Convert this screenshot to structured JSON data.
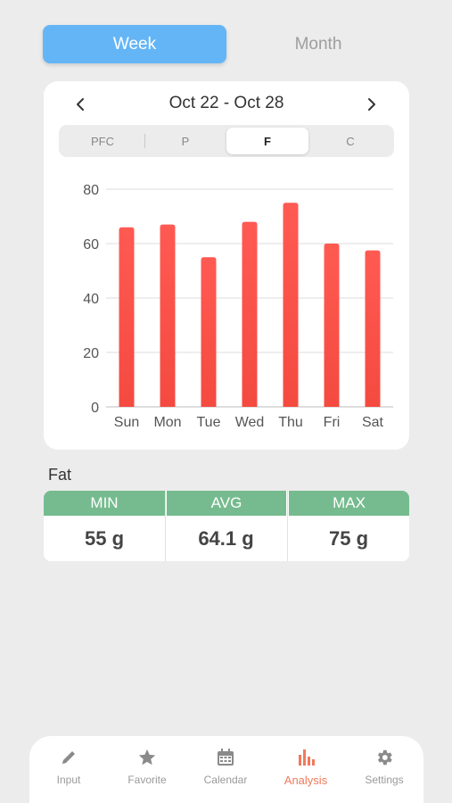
{
  "period_toggle": {
    "week_label": "Week",
    "month_label": "Month",
    "selected": "Week"
  },
  "date_nav": {
    "prev_icon": "chevron-left-icon",
    "next_icon": "chevron-right-icon",
    "range_label": "Oct 22 - Oct 28"
  },
  "nutrient_tabs": [
    {
      "label": "PFC",
      "active": false
    },
    {
      "label": "P",
      "active": false
    },
    {
      "label": "F",
      "active": true
    },
    {
      "label": "C",
      "active": false
    }
  ],
  "chart_data": {
    "type": "bar",
    "categories": [
      "Sun",
      "Mon",
      "Tue",
      "Wed",
      "Thu",
      "Fri",
      "Sat"
    ],
    "values": [
      66,
      67,
      55,
      68,
      75,
      60,
      57.5
    ],
    "yticks": [
      0,
      20,
      40,
      60,
      80
    ],
    "ylim": [
      0,
      80
    ],
    "grid": true,
    "bar_color": "#f44a40"
  },
  "summary": {
    "title": "Fat",
    "columns": [
      {
        "label": "MIN",
        "value": "55 g"
      },
      {
        "label": "AVG",
        "value": "64.1 g"
      },
      {
        "label": "MAX",
        "value": "75 g"
      }
    ]
  },
  "colors": {
    "accent": "#64b5f6",
    "stat_header": "#76bb8f",
    "active_nav": "#f07a5c",
    "inactive_nav": "#9a9a9a"
  },
  "bottom_nav": [
    {
      "label": "Input",
      "icon": "pencil-icon",
      "active": false
    },
    {
      "label": "Favorite",
      "icon": "star-icon",
      "active": false
    },
    {
      "label": "Calendar",
      "icon": "calendar-icon",
      "active": false
    },
    {
      "label": "Analysis",
      "icon": "bar-chart-icon",
      "active": true
    },
    {
      "label": "Settings",
      "icon": "gear-icon",
      "active": false
    }
  ]
}
